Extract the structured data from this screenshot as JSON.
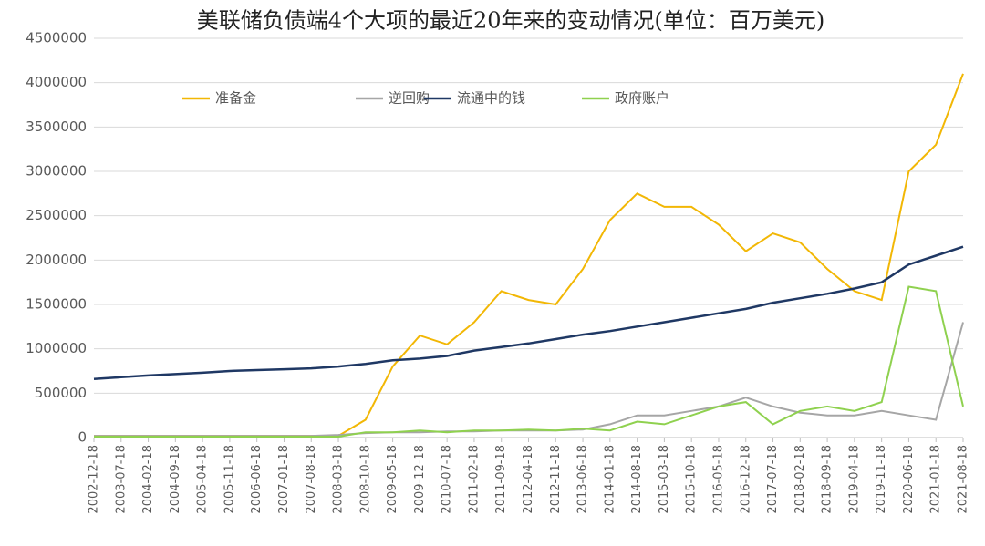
{
  "chart_data": {
    "type": "line",
    "title": "美联储负债端4个大项的最近20年来的变动情况(单位：百万美元)",
    "categories": [
      "2002-12-18",
      "2003-07-18",
      "2004-02-18",
      "2004-09-18",
      "2005-04-18",
      "2005-11-18",
      "2006-06-18",
      "2007-01-18",
      "2007-08-18",
      "2008-03-18",
      "2008-10-18",
      "2009-05-18",
      "2009-12-18",
      "2010-07-18",
      "2011-02-18",
      "2011-09-18",
      "2012-04-18",
      "2012-11-18",
      "2013-06-18",
      "2014-01-18",
      "2014-08-18",
      "2015-03-18",
      "2015-10-18",
      "2016-05-18",
      "2016-12-18",
      "2017-07-18",
      "2018-02-18",
      "2018-09-18",
      "2019-04-18",
      "2019-11-18",
      "2020-06-18",
      "2021-01-18",
      "2021-08-18"
    ],
    "series": [
      {
        "name": "准备金",
        "color": "#f2b705",
        "values": [
          20000,
          20000,
          20000,
          20000,
          20000,
          20000,
          20000,
          20000,
          20000,
          20000,
          200000,
          800000,
          1150000,
          1050000,
          1300000,
          1650000,
          1550000,
          1500000,
          1900000,
          2450000,
          2750000,
          2600000,
          2600000,
          2400000,
          2100000,
          2300000,
          2200000,
          1900000,
          1650000,
          1550000,
          3000000,
          3300000,
          4100000
        ]
      },
      {
        "name": "逆回购",
        "color": "#a6a6a6",
        "values": [
          20000,
          20000,
          20000,
          20000,
          20000,
          20000,
          20000,
          20000,
          20000,
          30000,
          50000,
          60000,
          60000,
          70000,
          70000,
          80000,
          80000,
          80000,
          90000,
          150000,
          250000,
          250000,
          300000,
          350000,
          450000,
          350000,
          280000,
          250000,
          250000,
          300000,
          250000,
          200000,
          1300000
        ]
      },
      {
        "name": "流通中的钱",
        "color": "#1f3864",
        "values": [
          660000,
          680000,
          700000,
          715000,
          730000,
          750000,
          760000,
          770000,
          780000,
          800000,
          830000,
          870000,
          890000,
          920000,
          980000,
          1020000,
          1060000,
          1110000,
          1160000,
          1200000,
          1250000,
          1300000,
          1350000,
          1400000,
          1450000,
          1520000,
          1570000,
          1620000,
          1680000,
          1750000,
          1950000,
          2050000,
          2150000
        ]
      },
      {
        "name": "政府账户",
        "color": "#8fd14f",
        "values": [
          10000,
          10000,
          10000,
          10000,
          10000,
          10000,
          10000,
          10000,
          10000,
          10000,
          60000,
          60000,
          80000,
          60000,
          80000,
          80000,
          90000,
          80000,
          100000,
          80000,
          180000,
          150000,
          250000,
          350000,
          400000,
          150000,
          300000,
          350000,
          300000,
          400000,
          1700000,
          1650000,
          350000
        ]
      }
    ],
    "ylim": [
      0,
      4500000
    ],
    "yticks": [
      0,
      500000,
      1000000,
      1500000,
      2000000,
      2500000,
      3000000,
      3500000,
      4000000,
      4500000
    ],
    "grid": true
  }
}
